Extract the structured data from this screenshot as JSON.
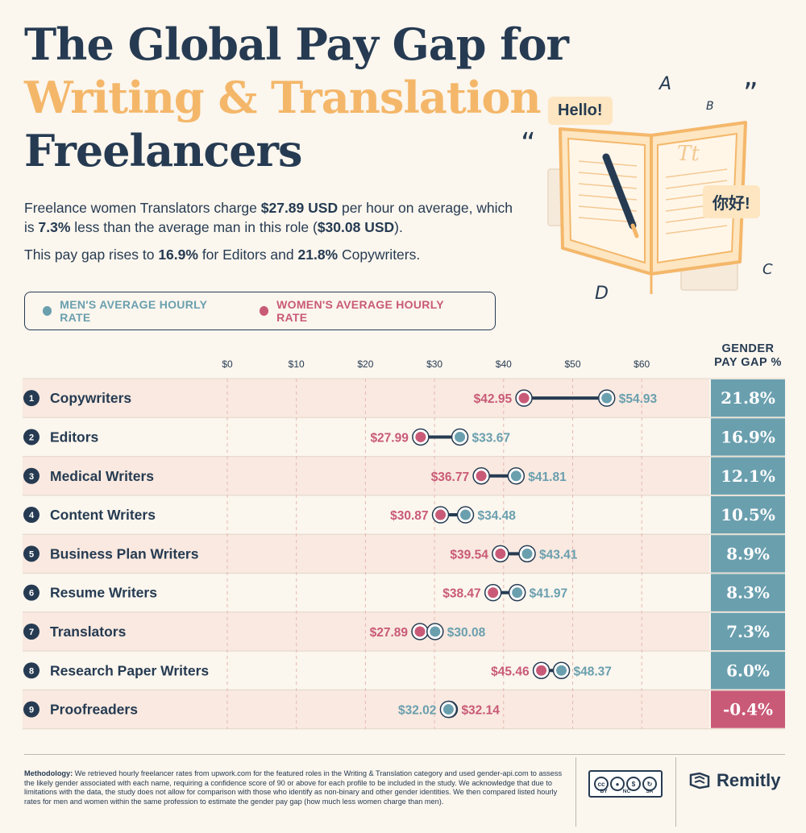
{
  "title": {
    "line1": "The Global Pay Gap for",
    "line2": "Writing & Translation",
    "line3": "Freelancers"
  },
  "intro": {
    "p1_a": "Freelance women Translators charge ",
    "p1_b": "$27.89 USD",
    "p1_c": " per hour on average, which is ",
    "p1_d": "7.3%",
    "p1_e": " less than the average man in this role (",
    "p1_f": "$30.08 USD",
    "p1_g": ").",
    "p2_a": "This pay gap rises to ",
    "p2_b": "16.9%",
    "p2_c": " for Editors and ",
    "p2_d": "21.8%",
    "p2_e": " Copywriters."
  },
  "legend": {
    "men": "MEN'S AVERAGE HOURLY RATE",
    "women": "WOMEN'S AVERAGE HOURLY RATE"
  },
  "illustration": {
    "bubble_hello": "Hello!",
    "bubble_nihao": "你好!",
    "book_text": "Tt",
    "letters": [
      "A",
      "B",
      "C",
      "D"
    ],
    "quote_open": "“",
    "quote_close": "”"
  },
  "gap_header": {
    "line1": "GENDER",
    "line2": "PAY GAP %"
  },
  "colors": {
    "navy": "#263b52",
    "orange": "#f4b76a",
    "men": "#6a9fae",
    "women": "#c95a77",
    "row_alt": "#f9e9e0",
    "gap_positive": "#6a9fae",
    "gap_negative": "#c95a77"
  },
  "chart_data": {
    "type": "dumbbell",
    "x_ticks": [
      "$0",
      "$10",
      "$20",
      "$30",
      "$40",
      "$50",
      "$60"
    ],
    "xlim": [
      0,
      70
    ],
    "categories": [
      "Copywriters",
      "Editors",
      "Medical Writers",
      "Content Writers",
      "Business Plan Writers",
      "Resume Writers",
      "Translators",
      "Research Paper Writers",
      "Proofreaders"
    ],
    "ranks": [
      "1",
      "2",
      "3",
      "4",
      "5",
      "6",
      "7",
      "8",
      "9"
    ],
    "series": [
      {
        "name": "MEN'S AVERAGE HOURLY RATE",
        "values": [
          54.93,
          33.67,
          41.81,
          34.48,
          43.41,
          41.97,
          30.08,
          48.37,
          32.02
        ]
      },
      {
        "name": "WOMEN'S AVERAGE HOURLY RATE",
        "values": [
          42.95,
          27.99,
          36.77,
          30.87,
          39.54,
          38.47,
          27.89,
          45.46,
          32.14
        ]
      }
    ],
    "men_labels": [
      "$54.93",
      "$33.67",
      "$41.81",
      "$34.48",
      "$43.41",
      "$41.97",
      "$30.08",
      "$48.37",
      "$32.02"
    ],
    "women_labels": [
      "$42.95",
      "$27.99",
      "$36.77",
      "$30.87",
      "$39.54",
      "$38.47",
      "$27.89",
      "$45.46",
      "$32.14"
    ],
    "gap_values": [
      21.8,
      16.9,
      12.1,
      10.5,
      8.9,
      8.3,
      7.3,
      6.0,
      -0.4
    ],
    "gap_labels": [
      "21.8%",
      "16.9%",
      "12.1%",
      "10.5%",
      "8.9%",
      "8.3%",
      "7.3%",
      "6.0%",
      "-0.4%"
    ]
  },
  "methodology": {
    "label": "Methodology:",
    "text": " We retrieved hourly freelancer rates from upwork.com for the featured roles in the Writing & Translation category and used gender-api.com to assess the likely gender associated with each name, requiring a confidence score of 90 or above for each profile to be included in the study. We acknowledge that due to limitations with the data, the study does not allow for comparison with those who identify as non-binary and other gender identities. We then compared listed hourly rates for men and women within the same profession to estimate the gender pay gap (how much less women charge than men)."
  },
  "license": {
    "cc": "cc",
    "by": "BY",
    "nc": "NC",
    "sa": "SA"
  },
  "brand": {
    "name": "Remitly"
  }
}
